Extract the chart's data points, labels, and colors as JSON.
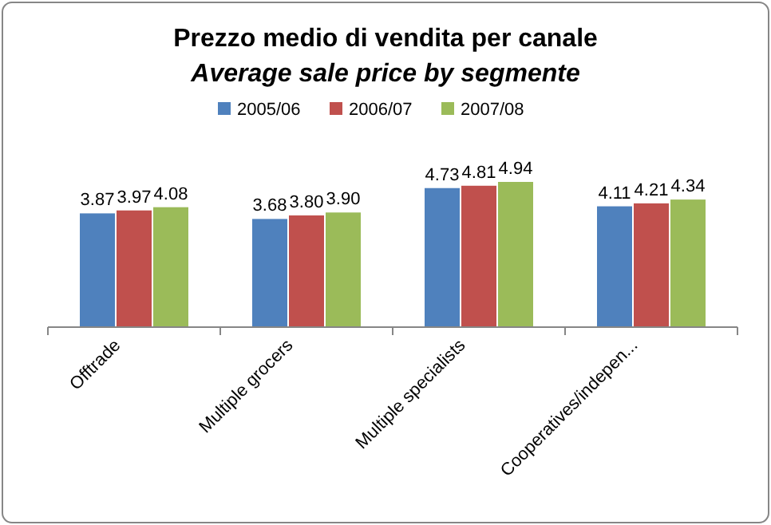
{
  "chart_data": {
    "type": "bar",
    "title": "Prezzo medio di vendita per canale",
    "subtitle": "Average sale price by segmente",
    "categories": [
      "Offtrade",
      "Multiple grocers",
      "Multiple specialists",
      "Cooperatives/indepen..."
    ],
    "series": [
      {
        "name": "2005/06",
        "color": "#4f81bd",
        "values": [
          3.87,
          3.68,
          4.73,
          4.11
        ],
        "value_labels": [
          "3.87",
          "3.68",
          "4.73",
          "4.11"
        ]
      },
      {
        "name": "2006/07",
        "color": "#c0504d",
        "values": [
          3.97,
          3.8,
          4.81,
          4.21
        ],
        "value_labels": [
          "3.97",
          "3.80",
          "4.81",
          "4.21"
        ]
      },
      {
        "name": "2007/08",
        "color": "#9bbb59",
        "values": [
          4.08,
          3.9,
          4.94,
          4.34
        ],
        "value_labels": [
          "4.08",
          "3.90",
          "4.94",
          "4.34"
        ]
      }
    ],
    "legend": "top",
    "grid": false
  }
}
